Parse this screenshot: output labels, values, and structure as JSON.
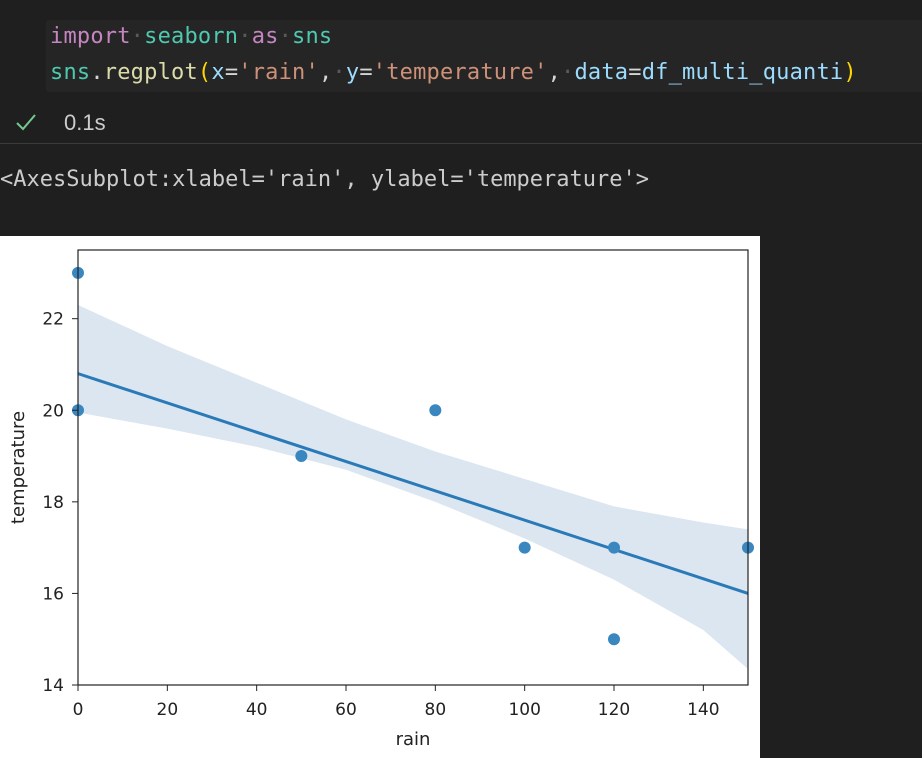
{
  "code": {
    "line1": {
      "kw1": "import",
      "mod": "seaborn",
      "kw2": "as",
      "alias": "sns"
    },
    "line2": {
      "obj": "sns",
      "dot": ".",
      "fn": "regplot",
      "open": "(",
      "p1": "x",
      "v1": "'rain'",
      "sep1": ",",
      "p2": "y",
      "v2": "'temperature'",
      "sep2": ",",
      "p3": "data",
      "eq": "=",
      "v3": "df_multi_quanti",
      "close": ")"
    }
  },
  "status": {
    "icon": "check-icon",
    "time": "0.1s",
    "color": "#73c991"
  },
  "output": {
    "repr": "<AxesSubplot:xlabel='rain', ylabel='temperature'>"
  },
  "chart_data": {
    "type": "scatter",
    "xlabel": "rain",
    "ylabel": "temperature",
    "xlim": [
      0,
      150
    ],
    "ylim": [
      14,
      23.5
    ],
    "xticks": [
      0,
      20,
      40,
      60,
      80,
      100,
      120,
      140
    ],
    "yticks": [
      14,
      16,
      18,
      20,
      22
    ],
    "points": [
      {
        "x": 0,
        "y": 23
      },
      {
        "x": 0,
        "y": 20
      },
      {
        "x": 50,
        "y": 19
      },
      {
        "x": 80,
        "y": 20
      },
      {
        "x": 100,
        "y": 17
      },
      {
        "x": 120,
        "y": 17
      },
      {
        "x": 120,
        "y": 15
      },
      {
        "x": 150,
        "y": 17
      }
    ],
    "regression_line": {
      "x": [
        0,
        150
      ],
      "y": [
        20.8,
        16.0
      ]
    },
    "confidence_band": {
      "x": [
        0,
        20,
        40,
        60,
        80,
        100,
        120,
        140,
        150
      ],
      "upper": [
        22.3,
        21.4,
        20.6,
        19.8,
        19.1,
        18.5,
        17.9,
        17.55,
        17.4
      ],
      "lower": [
        19.95,
        19.6,
        19.2,
        18.7,
        18.0,
        17.2,
        16.3,
        15.2,
        14.35
      ]
    },
    "grid": false,
    "colors": {
      "points": "#3a87c0",
      "line": "#2a7ab8",
      "band": "#dbe6f1"
    }
  }
}
